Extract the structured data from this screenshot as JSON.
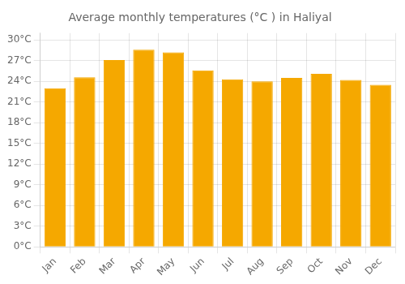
{
  "chart_data": {
    "type": "bar",
    "title": "Average monthly temperatures (°C ) in Haliyal",
    "categories": [
      "Jan",
      "Feb",
      "Mar",
      "Apr",
      "May",
      "Jun",
      "Jul",
      "Aug",
      "Sep",
      "Oct",
      "Nov",
      "Dec"
    ],
    "values": [
      23.0,
      24.6,
      27.1,
      28.6,
      28.2,
      25.6,
      24.3,
      24.0,
      24.5,
      25.1,
      24.2,
      23.5
    ],
    "color": "#F5A800",
    "ylim": [
      0,
      31
    ],
    "yticks": [
      {
        "value": 0,
        "label": "0°C"
      },
      {
        "value": 3,
        "label": "3°C"
      },
      {
        "value": 6,
        "label": "6°C"
      },
      {
        "value": 9,
        "label": "9°C"
      },
      {
        "value": 12,
        "label": "12°C"
      },
      {
        "value": 15,
        "label": "15°C"
      },
      {
        "value": 18,
        "label": "18°C"
      },
      {
        "value": 21,
        "label": "21°C"
      },
      {
        "value": 24,
        "label": "24°C"
      },
      {
        "value": 27,
        "label": "27°C"
      },
      {
        "value": 30,
        "label": "30°C"
      }
    ],
    "grid": true
  }
}
